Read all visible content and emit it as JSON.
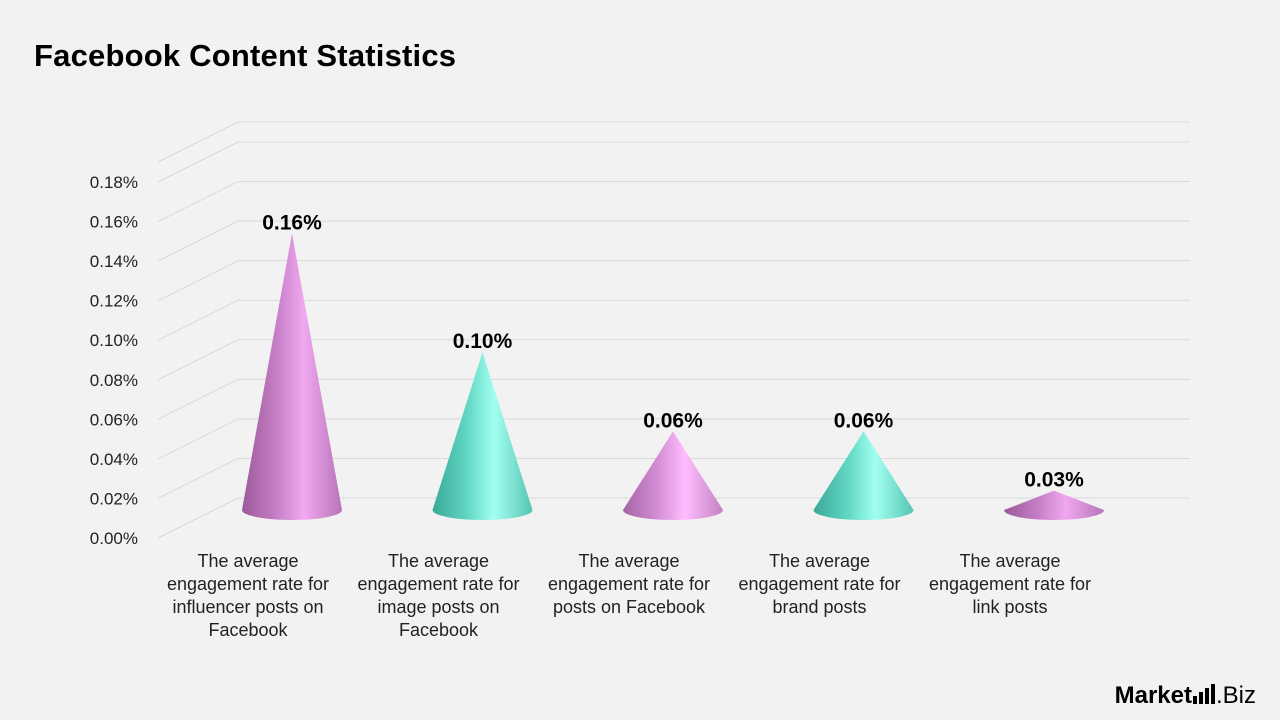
{
  "title": "Facebook Content Statistics",
  "chart_data": {
    "type": "bar",
    "style": "3d-cone",
    "title": "Facebook Content Statistics",
    "xlabel": "",
    "ylabel": "",
    "ylim": [
      0,
      0.18
    ],
    "yticks": [
      "0.00%",
      "0.02%",
      "0.04%",
      "0.06%",
      "0.08%",
      "0.10%",
      "0.12%",
      "0.14%",
      "0.16%",
      "0.18%"
    ],
    "grid": true,
    "categories": [
      "The average engagement rate for influencer posts on Facebook",
      "The average engagement rate for image posts on Facebook",
      "The average engagement rate for posts on Facebook",
      "The average engagement rate for brand posts",
      "The average engagement rate for link posts"
    ],
    "values": [
      0.16,
      0.1,
      0.06,
      0.06,
      0.03
    ],
    "data_labels": [
      "0.16%",
      "0.10%",
      "0.06%",
      "0.06%",
      "0.03%"
    ],
    "colors": [
      "#d98ad8",
      "#7ef0dc",
      "#f0a0f0",
      "#7ef0dc",
      "#e08ae0"
    ]
  },
  "logo": {
    "brand": "Market",
    "suffix": ".Biz"
  }
}
